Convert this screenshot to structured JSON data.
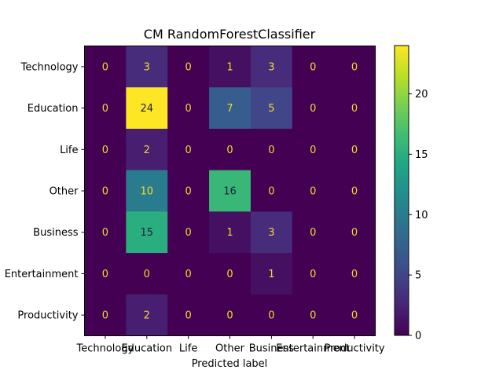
{
  "chart_data": {
    "type": "heatmap",
    "title": "CM RandomForestClassifier",
    "xlabel": "Predicted label",
    "ylabel": "",
    "x_categories": [
      "Technology",
      "Education",
      "Life",
      "Other",
      "Business",
      "Entertainment",
      "Productivity"
    ],
    "y_categories": [
      "Technology",
      "Education",
      "Life",
      "Other",
      "Business",
      "Entertainment",
      "Productivity"
    ],
    "values": [
      [
        0,
        3,
        0,
        1,
        3,
        0,
        0
      ],
      [
        0,
        24,
        0,
        7,
        5,
        0,
        0
      ],
      [
        0,
        2,
        0,
        0,
        0,
        0,
        0
      ],
      [
        0,
        10,
        0,
        16,
        0,
        0,
        0
      ],
      [
        0,
        15,
        0,
        1,
        3,
        0,
        0
      ],
      [
        0,
        0,
        0,
        0,
        1,
        0,
        0
      ],
      [
        0,
        2,
        0,
        0,
        0,
        0,
        0
      ]
    ],
    "colormap": "viridis",
    "vmin": 0,
    "vmax": 24,
    "colorbar_ticks": [
      0,
      5,
      10,
      15,
      20
    ],
    "grid": false,
    "legend": "colorbar-right"
  },
  "colors": {
    "text_light": "#f4d82c",
    "text_dark": "#1f1f3a"
  }
}
